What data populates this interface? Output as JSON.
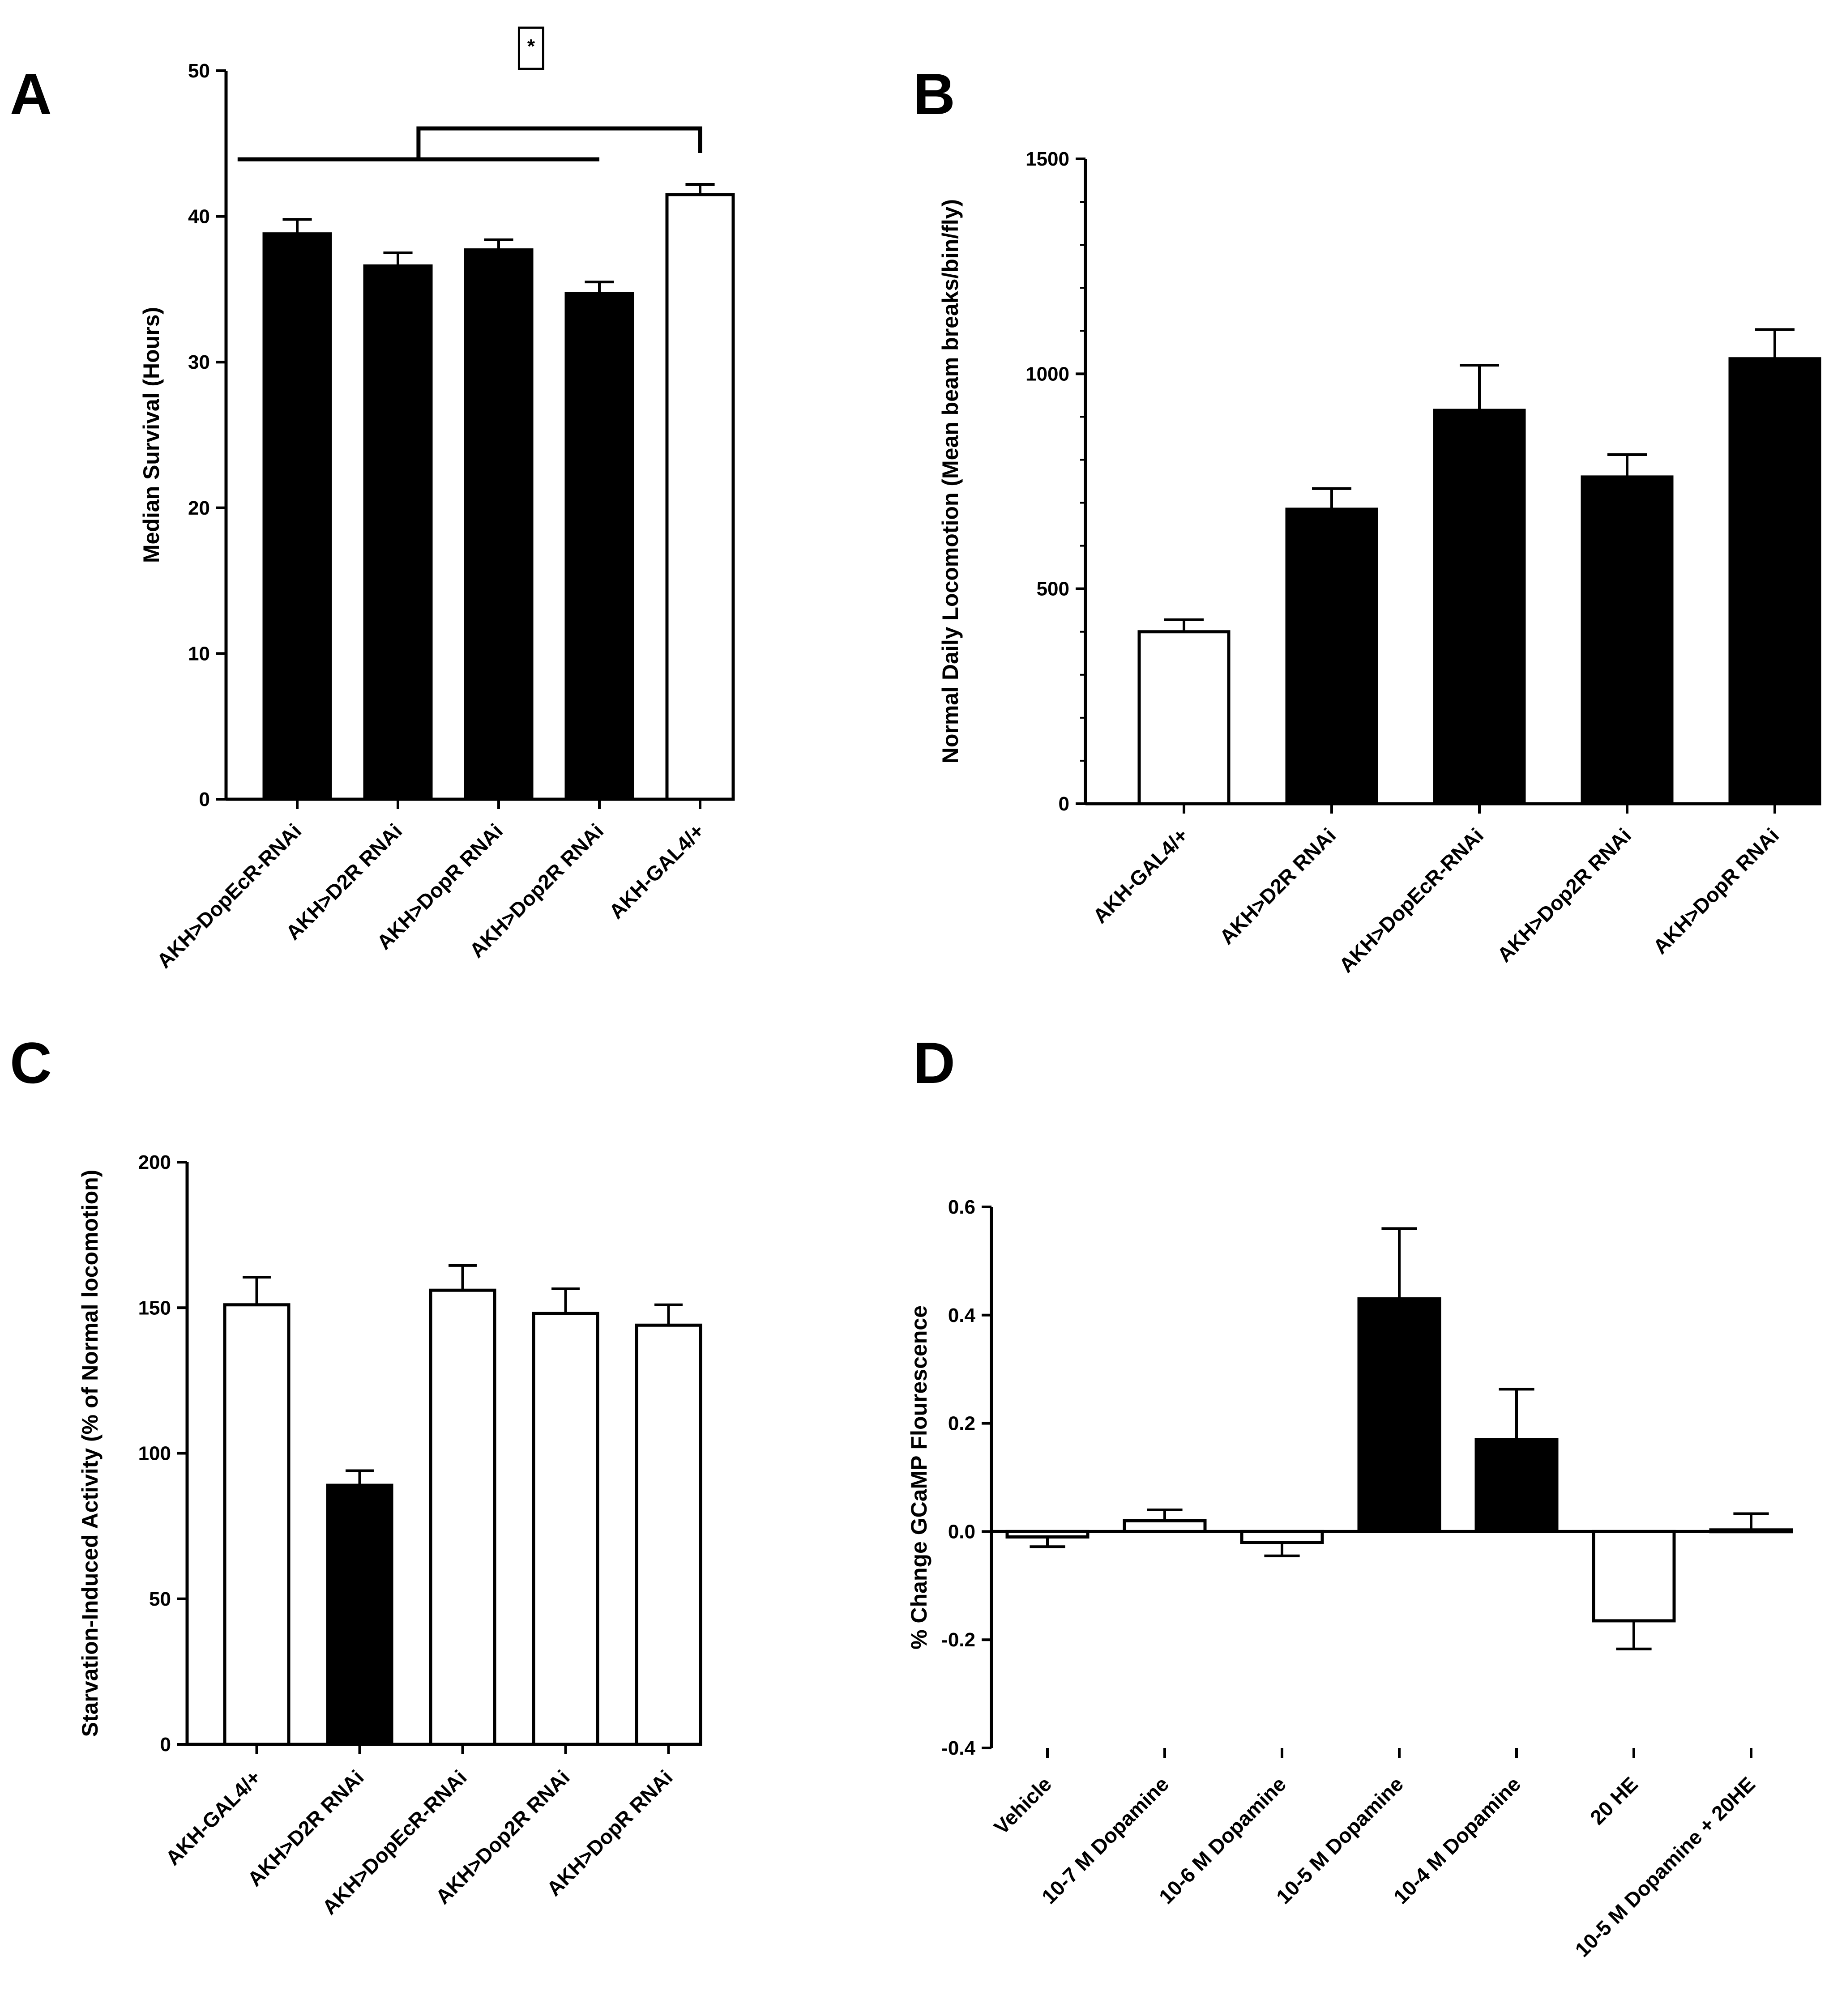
{
  "colors": {
    "filled": "#000000",
    "open": "#ffffff",
    "stroke": "#000000"
  },
  "chart_data": [
    {
      "panel": "A",
      "type": "bar",
      "ylabel": "Median Survival (Hours)",
      "ylim": [
        0,
        50
      ],
      "yticks": [
        0,
        10,
        20,
        30,
        40,
        50
      ],
      "ytick_labels": [
        "0",
        "10",
        "20",
        "30",
        "40",
        "50"
      ],
      "categories": [
        "AKH>DopEcR-RNAi",
        "AKH>D2R RNAi",
        "AKH>DopR RNAi",
        "AKH>Dop2R RNAi",
        "AKH-GAL4/+"
      ],
      "values": [
        38.8,
        36.6,
        37.7,
        34.7,
        41.5
      ],
      "errors": [
        1.0,
        0.9,
        0.7,
        0.8,
        0.7
      ],
      "fill": [
        "filled",
        "filled",
        "filled",
        "filled",
        "open"
      ],
      "significance": {
        "label": "*",
        "from_index": 0,
        "to_index": 3,
        "vs_index": 4
      }
    },
    {
      "panel": "B",
      "type": "bar",
      "ylabel": "Normal Daily Locomotion (Mean beam breaks/bin/fly)",
      "ylim": [
        0,
        1500
      ],
      "yticks": [
        0,
        500,
        1000,
        1500
      ],
      "ytick_labels": [
        "0",
        "500",
        "1000",
        "1500"
      ],
      "minor_tick_step": 100,
      "categories": [
        "AKH-GAL4/+",
        "AKH>D2R RNAi",
        "AKH>DopEcR-RNAi",
        "AKH>Dop2R RNAi",
        "AKH>DopR RNAi"
      ],
      "values": [
        400,
        685,
        915,
        760,
        1035
      ],
      "errors": [
        28,
        48,
        105,
        52,
        68
      ],
      "fill": [
        "open",
        "filled",
        "filled",
        "filled",
        "filled"
      ]
    },
    {
      "panel": "C",
      "type": "bar",
      "ylabel": "Starvation-Induced Activity (% of Normal locomotion)",
      "ylim": [
        0,
        200
      ],
      "yticks": [
        0,
        50,
        100,
        150,
        200
      ],
      "ytick_labels": [
        "0",
        "50",
        "100",
        "150",
        "200"
      ],
      "categories": [
        "AKH-GAL4/+",
        "AKH>D2R RNAi",
        "AKH>DopEcR-RNAi",
        "AKH>Dop2R RNAi",
        "AKH>DopR RNAi"
      ],
      "values": [
        151,
        89,
        156,
        148,
        144
      ],
      "errors": [
        9.5,
        5,
        8.5,
        8.5,
        7
      ],
      "fill": [
        "open",
        "filled",
        "open",
        "open",
        "open"
      ]
    },
    {
      "panel": "D",
      "type": "bar",
      "ylabel": "% Change GCaMP Flourescence",
      "ylim": [
        -0.4,
        0.6
      ],
      "yticks": [
        -0.4,
        -0.2,
        0.0,
        0.2,
        0.4,
        0.6
      ],
      "ytick_labels": [
        "-0.4",
        "-0.2",
        "0.0",
        "0.2",
        "0.4",
        "0.6"
      ],
      "categories": [
        "Vehicle",
        "10-7 M Dopamine",
        "10-6 M Dopamine",
        "10-5 M Dopamine",
        "10-4 M Dopamine",
        "20 HE",
        "10-5 M Dopamine + 20HE"
      ],
      "values": [
        -0.01,
        0.02,
        -0.02,
        0.43,
        0.17,
        -0.165,
        0.003
      ],
      "errors": [
        0.018,
        0.02,
        0.025,
        0.13,
        0.093,
        0.052,
        0.03
      ],
      "fill": [
        "open",
        "open",
        "open",
        "filled",
        "filled",
        "open",
        "open"
      ]
    }
  ]
}
